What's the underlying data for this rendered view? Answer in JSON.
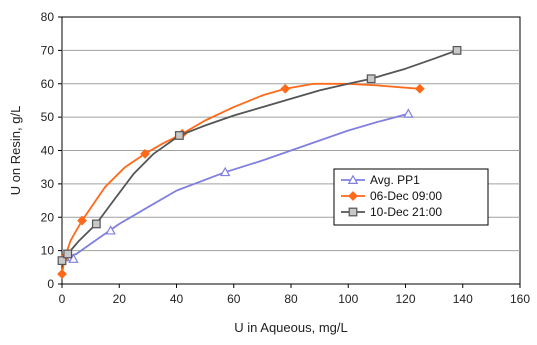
{
  "chart_data": {
    "type": "line",
    "xlabel": "U in Aqueous, mg/L",
    "ylabel": "U on Resin, g/L",
    "xlim": [
      0,
      160
    ],
    "ylim": [
      0,
      80
    ],
    "x_ticks": [
      "0",
      "20",
      "40",
      "60",
      "80",
      "100",
      "120",
      "140",
      "160"
    ],
    "y_ticks": [
      "0",
      "10",
      "20",
      "30",
      "40",
      "50",
      "60",
      "70",
      "80"
    ],
    "grid": "horizontal",
    "legend_position": "center-right",
    "series": [
      {
        "name": "Avg. PP1",
        "color": "#8080e0",
        "marker": "triangle",
        "points": [
          [
            1,
            8
          ],
          [
            4,
            7.5
          ],
          [
            17,
            16
          ],
          [
            57,
            33.5
          ],
          [
            121,
            51
          ]
        ],
        "curve": [
          [
            1,
            8
          ],
          [
            5,
            9
          ],
          [
            10,
            12
          ],
          [
            20,
            18
          ],
          [
            30,
            23
          ],
          [
            40,
            28
          ],
          [
            57,
            33.5
          ],
          [
            70,
            37
          ],
          [
            80,
            40
          ],
          [
            90,
            43
          ],
          [
            100,
            46
          ],
          [
            110,
            48.5
          ],
          [
            121,
            51
          ]
        ]
      },
      {
        "name": "06-Dec 09:00",
        "color": "#ff6a1a",
        "marker": "diamond",
        "points": [
          [
            0,
            3
          ],
          [
            1,
            8
          ],
          [
            7,
            19
          ],
          [
            29,
            39
          ],
          [
            42,
            45
          ],
          [
            78,
            58.5
          ],
          [
            125,
            58.5
          ]
        ],
        "curve": [
          [
            0,
            3
          ],
          [
            1,
            8
          ],
          [
            3,
            13
          ],
          [
            7,
            19
          ],
          [
            15,
            29
          ],
          [
            22,
            35
          ],
          [
            29,
            39
          ],
          [
            35,
            42
          ],
          [
            42,
            45
          ],
          [
            50,
            49
          ],
          [
            60,
            53
          ],
          [
            70,
            56.5
          ],
          [
            78,
            58.5
          ],
          [
            88,
            60
          ],
          [
            100,
            60
          ],
          [
            110,
            59.5
          ],
          [
            125,
            58.5
          ]
        ]
      },
      {
        "name": "10-Dec 21:00",
        "color": "#555555",
        "marker": "square",
        "points": [
          [
            0,
            7
          ],
          [
            2,
            9
          ],
          [
            12,
            18
          ],
          [
            41,
            44.5
          ],
          [
            108,
            61.5
          ],
          [
            138,
            70
          ]
        ],
        "curve": [
          [
            0,
            7
          ],
          [
            2,
            9
          ],
          [
            6,
            13
          ],
          [
            12,
            18
          ],
          [
            18,
            25
          ],
          [
            25,
            33
          ],
          [
            32,
            39
          ],
          [
            41,
            44.5
          ],
          [
            50,
            47.5
          ],
          [
            60,
            50.5
          ],
          [
            70,
            53
          ],
          [
            80,
            55.5
          ],
          [
            90,
            58
          ],
          [
            100,
            60
          ],
          [
            108,
            61.5
          ],
          [
            120,
            64.5
          ],
          [
            130,
            67.5
          ],
          [
            138,
            70
          ]
        ]
      }
    ]
  }
}
